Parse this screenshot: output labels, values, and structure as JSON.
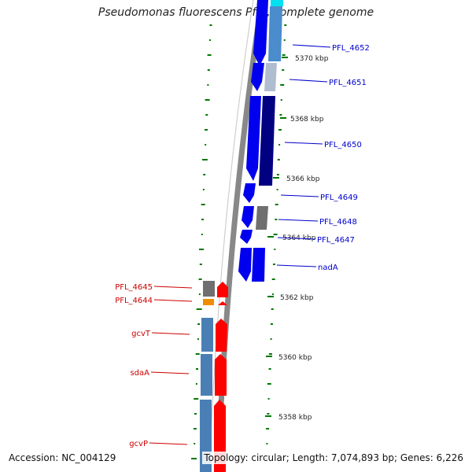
{
  "title": "Pseudomonas fluorescens Pf-5, complete genome",
  "footer": {
    "accession": "Accession: NC_004129",
    "topology": "Topology: circular; Length: 7,074,893 bp; Genes: 6,226"
  },
  "colors": {
    "forward_cds": "#0000ee",
    "reverse_cds": "#ff0000",
    "blue_label": "#0000cc",
    "red_label": "#cc0000",
    "gc_skew_ticks": "#007700",
    "backbone": "#888888"
  },
  "kbp_ticks": [
    "5370 kbp",
    "5368 kbp",
    "5366 kbp",
    "5364 kbp",
    "5362 kbp",
    "5360 kbp",
    "5358 kbp"
  ],
  "forward_labels": [
    "PFL_4652",
    "PFL_4651",
    "PFL_4650",
    "PFL_4649",
    "PFL_4648",
    "PFL_4647",
    "nadA"
  ],
  "reverse_labels": [
    "PFL_4645",
    "PFL_4644",
    "gcvT",
    "sdaA",
    "gcvP"
  ]
}
